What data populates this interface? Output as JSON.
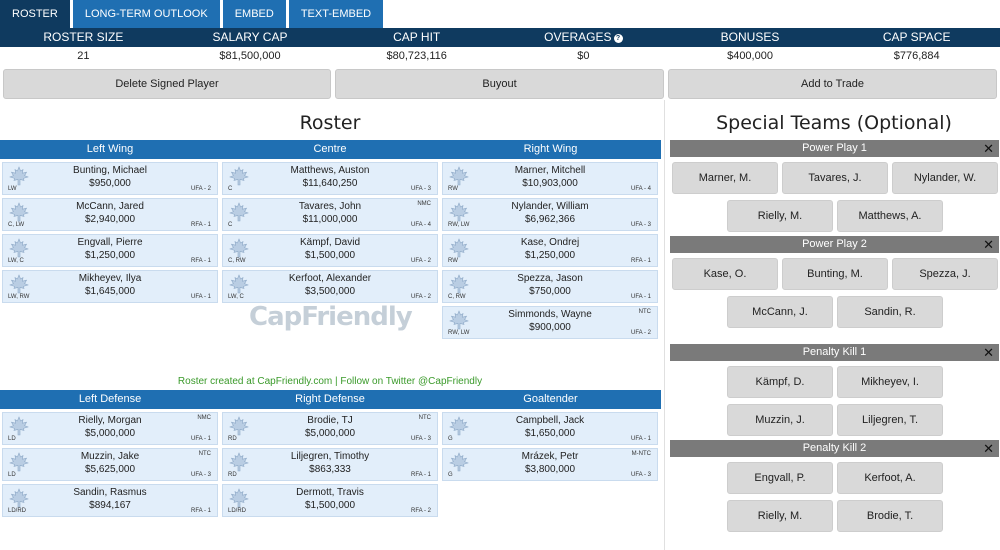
{
  "tabs": [
    "ROSTER",
    "LONG-TERM OUTLOOK",
    "EMBED",
    "TEXT-EMBED"
  ],
  "summary": {
    "headers": [
      "ROSTER SIZE",
      "SALARY CAP",
      "CAP HIT",
      "OVERAGES",
      "BONUSES",
      "CAP SPACE"
    ],
    "values": [
      "21",
      "$81,500,000",
      "$80,723,116",
      "$0",
      "$400,000",
      "$776,884"
    ]
  },
  "actions": [
    "Delete Signed Player",
    "Buyout",
    "Add to Trade"
  ],
  "roster_title": "Roster",
  "special_title": "Special Teams (Optional)",
  "watermark": "CapFriendly",
  "credit": "Roster created at CapFriendly.com | Follow on Twitter @CapFriendly",
  "forward_heads": [
    "Left Wing",
    "Centre",
    "Right Wing"
  ],
  "defense_heads": [
    "Left Defense",
    "Right Defense",
    "Goaltender"
  ],
  "forwards": [
    [
      {
        "name": "Bunting, Michael",
        "salary": "$950,000",
        "pos": "LW",
        "status": "UFA - 2",
        "clause": ""
      },
      {
        "name": "McCann, Jared",
        "salary": "$2,940,000",
        "pos": "C, LW",
        "status": "RFA - 1",
        "clause": ""
      },
      {
        "name": "Engvall, Pierre",
        "salary": "$1,250,000",
        "pos": "LW, C",
        "status": "RFA - 1",
        "clause": ""
      },
      {
        "name": "Mikheyev, Ilya",
        "salary": "$1,645,000",
        "pos": "LW, RW",
        "status": "UFA - 1",
        "clause": ""
      }
    ],
    [
      {
        "name": "Matthews, Auston",
        "salary": "$11,640,250",
        "pos": "C",
        "status": "UFA - 3",
        "clause": ""
      },
      {
        "name": "Tavares, John",
        "salary": "$11,000,000",
        "pos": "C",
        "status": "UFA - 4",
        "clause": "NMC"
      },
      {
        "name": "Kämpf, David",
        "salary": "$1,500,000",
        "pos": "C, RW",
        "status": "UFA - 2",
        "clause": ""
      },
      {
        "name": "Kerfoot, Alexander",
        "salary": "$3,500,000",
        "pos": "LW, C",
        "status": "UFA - 2",
        "clause": ""
      }
    ],
    [
      {
        "name": "Marner, Mitchell",
        "salary": "$10,903,000",
        "pos": "RW",
        "status": "UFA - 4",
        "clause": ""
      },
      {
        "name": "Nylander, William",
        "salary": "$6,962,366",
        "pos": "RW, LW",
        "status": "UFA - 3",
        "clause": ""
      },
      {
        "name": "Kase, Ondrej",
        "salary": "$1,250,000",
        "pos": "RW",
        "status": "RFA - 1",
        "clause": ""
      },
      {
        "name": "Spezza, Jason",
        "salary": "$750,000",
        "pos": "C, RW",
        "status": "UFA - 1",
        "clause": ""
      },
      {
        "name": "Simmonds, Wayne",
        "salary": "$900,000",
        "pos": "RW, LW",
        "status": "UFA - 2",
        "clause": "NTC"
      }
    ]
  ],
  "defense": [
    [
      {
        "name": "Rielly, Morgan",
        "salary": "$5,000,000",
        "pos": "LD",
        "status": "UFA - 1",
        "clause": "NMC"
      },
      {
        "name": "Muzzin, Jake",
        "salary": "$5,625,000",
        "pos": "LD",
        "status": "UFA - 3",
        "clause": "NTC"
      },
      {
        "name": "Sandin, Rasmus",
        "salary": "$894,167",
        "pos": "LD/RD",
        "status": "RFA - 1",
        "clause": ""
      }
    ],
    [
      {
        "name": "Brodie, TJ",
        "salary": "$5,000,000",
        "pos": "RD",
        "status": "UFA - 3",
        "clause": "NTC"
      },
      {
        "name": "Liljegren, Timothy",
        "salary": "$863,333",
        "pos": "RD",
        "status": "RFA - 1",
        "clause": ""
      },
      {
        "name": "Dermott, Travis",
        "salary": "$1,500,000",
        "pos": "LD/RD",
        "status": "RFA - 2",
        "clause": ""
      }
    ],
    [
      {
        "name": "Campbell, Jack",
        "salary": "$1,650,000",
        "pos": "G",
        "status": "UFA - 1",
        "clause": ""
      },
      {
        "name": "Mrázek, Petr",
        "salary": "$3,800,000",
        "pos": "G",
        "status": "UFA - 3",
        "clause": "M-NTC"
      }
    ]
  ],
  "special_teams": [
    {
      "title": "Power Play 1",
      "players": [
        "Marner, M.",
        "Tavares, J.",
        "Nylander, W.",
        "Rielly, M.",
        "Matthews, A."
      ]
    },
    {
      "title": "Power Play 2",
      "players": [
        "Kase, O.",
        "Bunting, M.",
        "Spezza, J.",
        "McCann, J.",
        "Sandin, R."
      ]
    },
    {
      "title": "Penalty Kill 1",
      "players": [
        "Kämpf, D.",
        "Mikheyev, I.",
        "Muzzin, J.",
        "Liljegren, T."
      ]
    },
    {
      "title": "Penalty Kill 2",
      "players": [
        "Engvall, P.",
        "Kerfoot, A.",
        "Rielly, M.",
        "Brodie, T."
      ]
    }
  ],
  "colors": {
    "tab_blue": "#1f6fb2",
    "navy": "#0f3a5f",
    "card_bg": "#e2eefa",
    "credit_green": "#3a9a2a"
  }
}
